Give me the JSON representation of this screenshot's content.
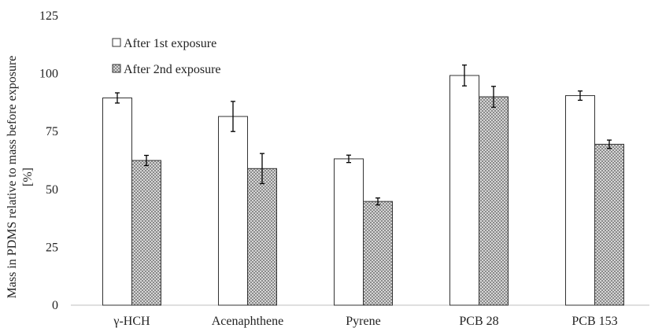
{
  "chart_data": {
    "type": "bar",
    "categories": [
      "γ-HCH",
      "Acenaphthene",
      "Pyrene",
      "PCB 28",
      "PCB 153"
    ],
    "series": [
      {
        "name": "After 1st exposure",
        "values": [
          89.5,
          81.5,
          63.2,
          99.2,
          90.5
        ],
        "errors": [
          2.2,
          6.5,
          1.6,
          4.5,
          2.0
        ],
        "fill": "#ffffff"
      },
      {
        "name": "After 2nd exposure",
        "values": [
          62.5,
          59.0,
          44.8,
          90.0,
          69.5
        ],
        "errors": [
          2.2,
          6.5,
          1.5,
          4.5,
          1.8
        ],
        "fill": "#bdbdbd"
      }
    ],
    "ylabel_line1": "Mass in PDMS relative to  mass before exposure",
    "ylabel_line2": "[%]",
    "ylim": [
      0,
      125
    ],
    "yticks": [
      0,
      25,
      50,
      75,
      100,
      125
    ],
    "grid": false,
    "legend_position": "top-left"
  }
}
